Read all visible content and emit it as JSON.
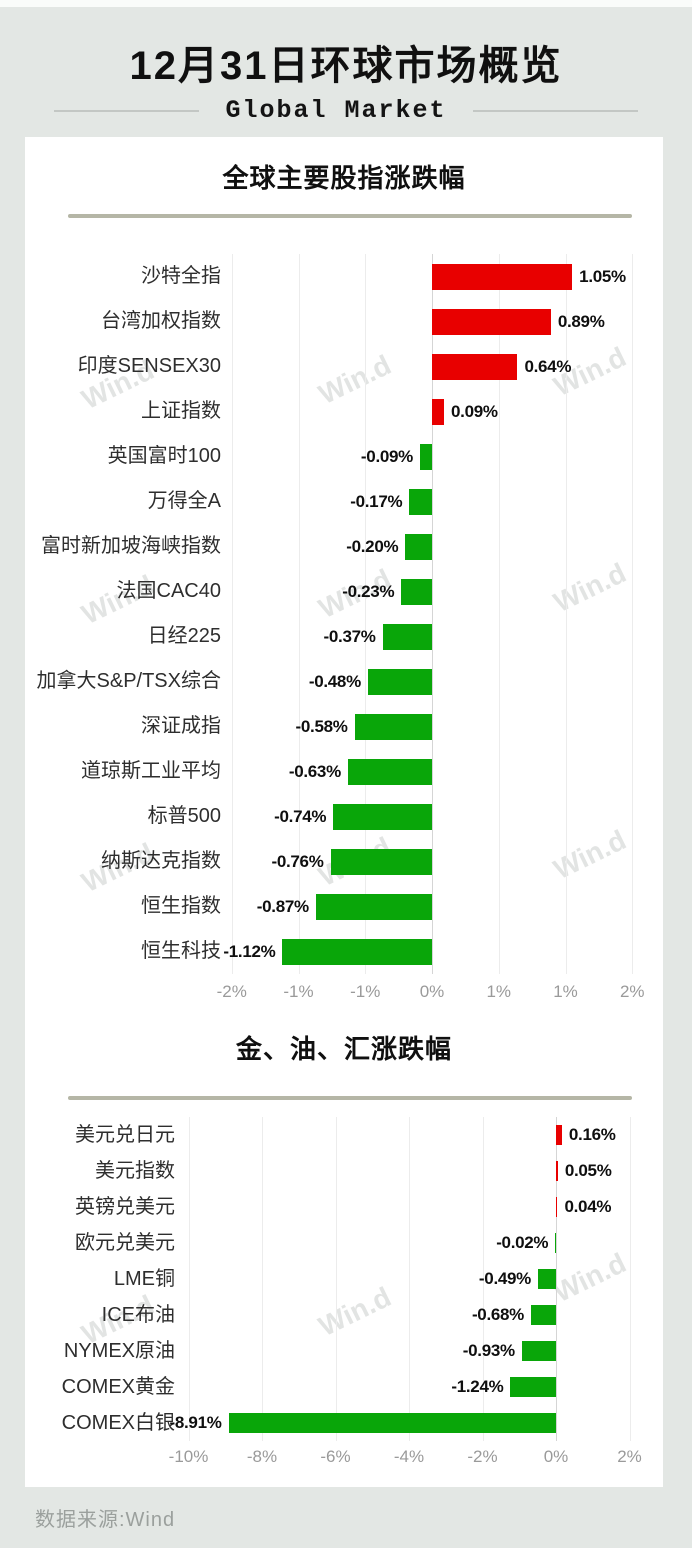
{
  "header": {
    "title": "12月31日环球市场概览",
    "subtitle": "Global Market"
  },
  "footer": {
    "source": "数据来源:Wind"
  },
  "watermark": {
    "text": "Win.d"
  },
  "colors": {
    "positive": "#e80000",
    "negative": "#09a609",
    "page_bg": "#e3e7e4",
    "card_bg": "#ffffff",
    "divider": "#b5b6a6",
    "subtitle_line": "#c3c7c4",
    "axis_text": "#9a9a9a",
    "category_text": "#2e2e2e",
    "value_text": "#0f0f0f"
  },
  "chart_data": [
    {
      "type": "bar",
      "orientation": "horizontal",
      "title": "全球主要股指涨跌幅",
      "unit": "%",
      "grid": true,
      "categories": [
        "沙特全指",
        "台湾加权指数",
        "印度SENSEX30",
        "上证指数",
        "英国富时100",
        "万得全A",
        "富时新加坡海峡指数",
        "法国CAC40",
        "日经225",
        "加拿大S&P/TSX综合",
        "深证成指",
        "道琼斯工业平均",
        "标普500",
        "纳斯达克指数",
        "恒生指数",
        "恒生科技"
      ],
      "values": [
        1.05,
        0.89,
        0.64,
        0.09,
        -0.09,
        -0.17,
        -0.2,
        -0.23,
        -0.37,
        -0.48,
        -0.58,
        -0.63,
        -0.74,
        -0.76,
        -0.87,
        -1.12
      ],
      "value_labels": [
        "1.05%",
        "0.89%",
        "0.64%",
        "0.09%",
        "-0.09%",
        "-0.17%",
        "-0.20%",
        "-0.23%",
        "-0.37%",
        "-0.48%",
        "-0.58%",
        "-0.63%",
        "-0.74%",
        "-0.76%",
        "-0.87%",
        "-1.12%"
      ],
      "x_ticks": [
        {
          "v": -1.5,
          "label": "-2%"
        },
        {
          "v": -1.0,
          "label": "-1%"
        },
        {
          "v": -0.5,
          "label": "-1%"
        },
        {
          "v": 0.0,
          "label": "0%"
        },
        {
          "v": 0.5,
          "label": "1%"
        },
        {
          "v": 1.0,
          "label": "1%"
        },
        {
          "v": 1.5,
          "label": "2%"
        }
      ],
      "xlim": [
        -1.55,
        1.7
      ],
      "color_rule": "red-up-green-down"
    },
    {
      "type": "bar",
      "orientation": "horizontal",
      "title": "金、油、汇涨跌幅",
      "unit": "%",
      "grid": true,
      "categories": [
        "美元兑日元",
        "美元指数",
        "英镑兑美元",
        "欧元兑美元",
        "LME铜",
        "ICE布油",
        "NYMEX原油",
        "COMEX黄金",
        "COMEX白银"
      ],
      "values": [
        0.16,
        0.05,
        0.04,
        -0.02,
        -0.49,
        -0.68,
        -0.93,
        -1.24,
        -8.91
      ],
      "value_labels": [
        "0.16%",
        "0.05%",
        "0.04%",
        "-0.02%",
        "-0.49%",
        "-0.68%",
        "-0.93%",
        "-1.24%",
        "-8.91%"
      ],
      "x_ticks": [
        {
          "v": -10,
          "label": "-10%"
        },
        {
          "v": -8,
          "label": "-8%"
        },
        {
          "v": -6,
          "label": "-6%"
        },
        {
          "v": -4,
          "label": "-4%"
        },
        {
          "v": -2,
          "label": "-2%"
        },
        {
          "v": 0,
          "label": "0%"
        },
        {
          "v": 2,
          "label": "2%"
        }
      ],
      "xlim": [
        -10.2,
        2.8
      ],
      "color_rule": "red-up-green-down"
    }
  ]
}
